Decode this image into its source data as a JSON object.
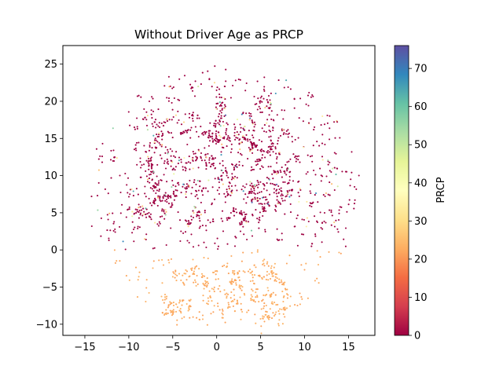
{
  "chart_data": {
    "type": "scatter",
    "title": "Without Driver Age as PRCP",
    "xlabel": "",
    "ylabel": "",
    "xlim": [
      -17.5,
      18.0
    ],
    "ylim": [
      -11.5,
      27.5
    ],
    "xticks": [
      -15,
      -10,
      -5,
      0,
      5,
      10,
      15
    ],
    "yticks": [
      -10,
      -5,
      0,
      5,
      10,
      15,
      20,
      25
    ],
    "xtick_labels": [
      "−15",
      "−10",
      "−5",
      "0",
      "5",
      "10",
      "15"
    ],
    "ytick_labels": [
      "−10",
      "−5",
      "0",
      "5",
      "10",
      "15",
      "20",
      "25"
    ],
    "grid": false,
    "colorbar": {
      "label": "PRCP",
      "range": [
        0,
        76
      ],
      "ticks": [
        0,
        10,
        20,
        30,
        40,
        50,
        60,
        70
      ],
      "tick_labels": [
        "0",
        "10",
        "20",
        "30",
        "40",
        "50",
        "60",
        "70"
      ],
      "colormap": "Spectral",
      "stops": [
        "#9e0142",
        "#d53e4f",
        "#f46d43",
        "#fdae61",
        "#fee08b",
        "#ffffbf",
        "#e6f598",
        "#abdda4",
        "#66c2a5",
        "#3288bd",
        "#5e4fa2"
      ]
    },
    "clusters": [
      {
        "x": [
          -10.0,
          10.0
        ],
        "y": [
          5.0,
          24.5
        ],
        "value": 0,
        "share": "majority"
      },
      {
        "x": [
          -6.0,
          8.0
        ],
        "y": [
          -9.5,
          -2.0
        ],
        "value": 22,
        "share": "lower region"
      }
    ]
  }
}
